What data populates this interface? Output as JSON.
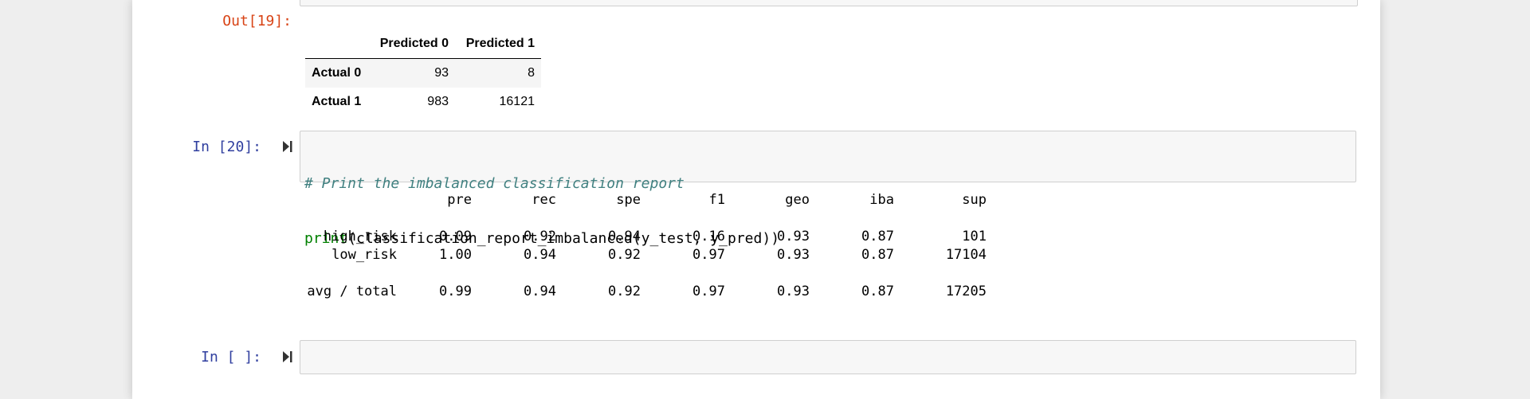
{
  "out19": {
    "prompt": "Out[19]:",
    "columns": [
      "Predicted 0",
      "Predicted 1"
    ],
    "rows": [
      {
        "label": "Actual 0",
        "values": [
          "93",
          "8"
        ]
      },
      {
        "label": "Actual 1",
        "values": [
          "983",
          "16121"
        ]
      }
    ]
  },
  "in20": {
    "prompt": "In [20]:",
    "comment": "# Print the imbalanced classification report",
    "code_fn": "print",
    "code_args": "(classification_report_imbalanced(y_test, y_pred))"
  },
  "report": {
    "headers": [
      "pre",
      "rec",
      "spe",
      "f1",
      "geo",
      "iba",
      "sup"
    ],
    "rows": [
      {
        "label": "high_risk",
        "values": [
          "0.09",
          "0.92",
          "0.94",
          "0.16",
          "0.93",
          "0.87",
          "101"
        ]
      },
      {
        "label": "low_risk",
        "values": [
          "1.00",
          "0.94",
          "0.92",
          "0.97",
          "0.93",
          "0.87",
          "17104"
        ]
      }
    ],
    "total": {
      "label": "avg / total",
      "values": [
        "0.99",
        "0.94",
        "0.92",
        "0.97",
        "0.93",
        "0.87",
        "17205"
      ]
    }
  },
  "empty_cell": {
    "prompt": "In [ ]:"
  }
}
